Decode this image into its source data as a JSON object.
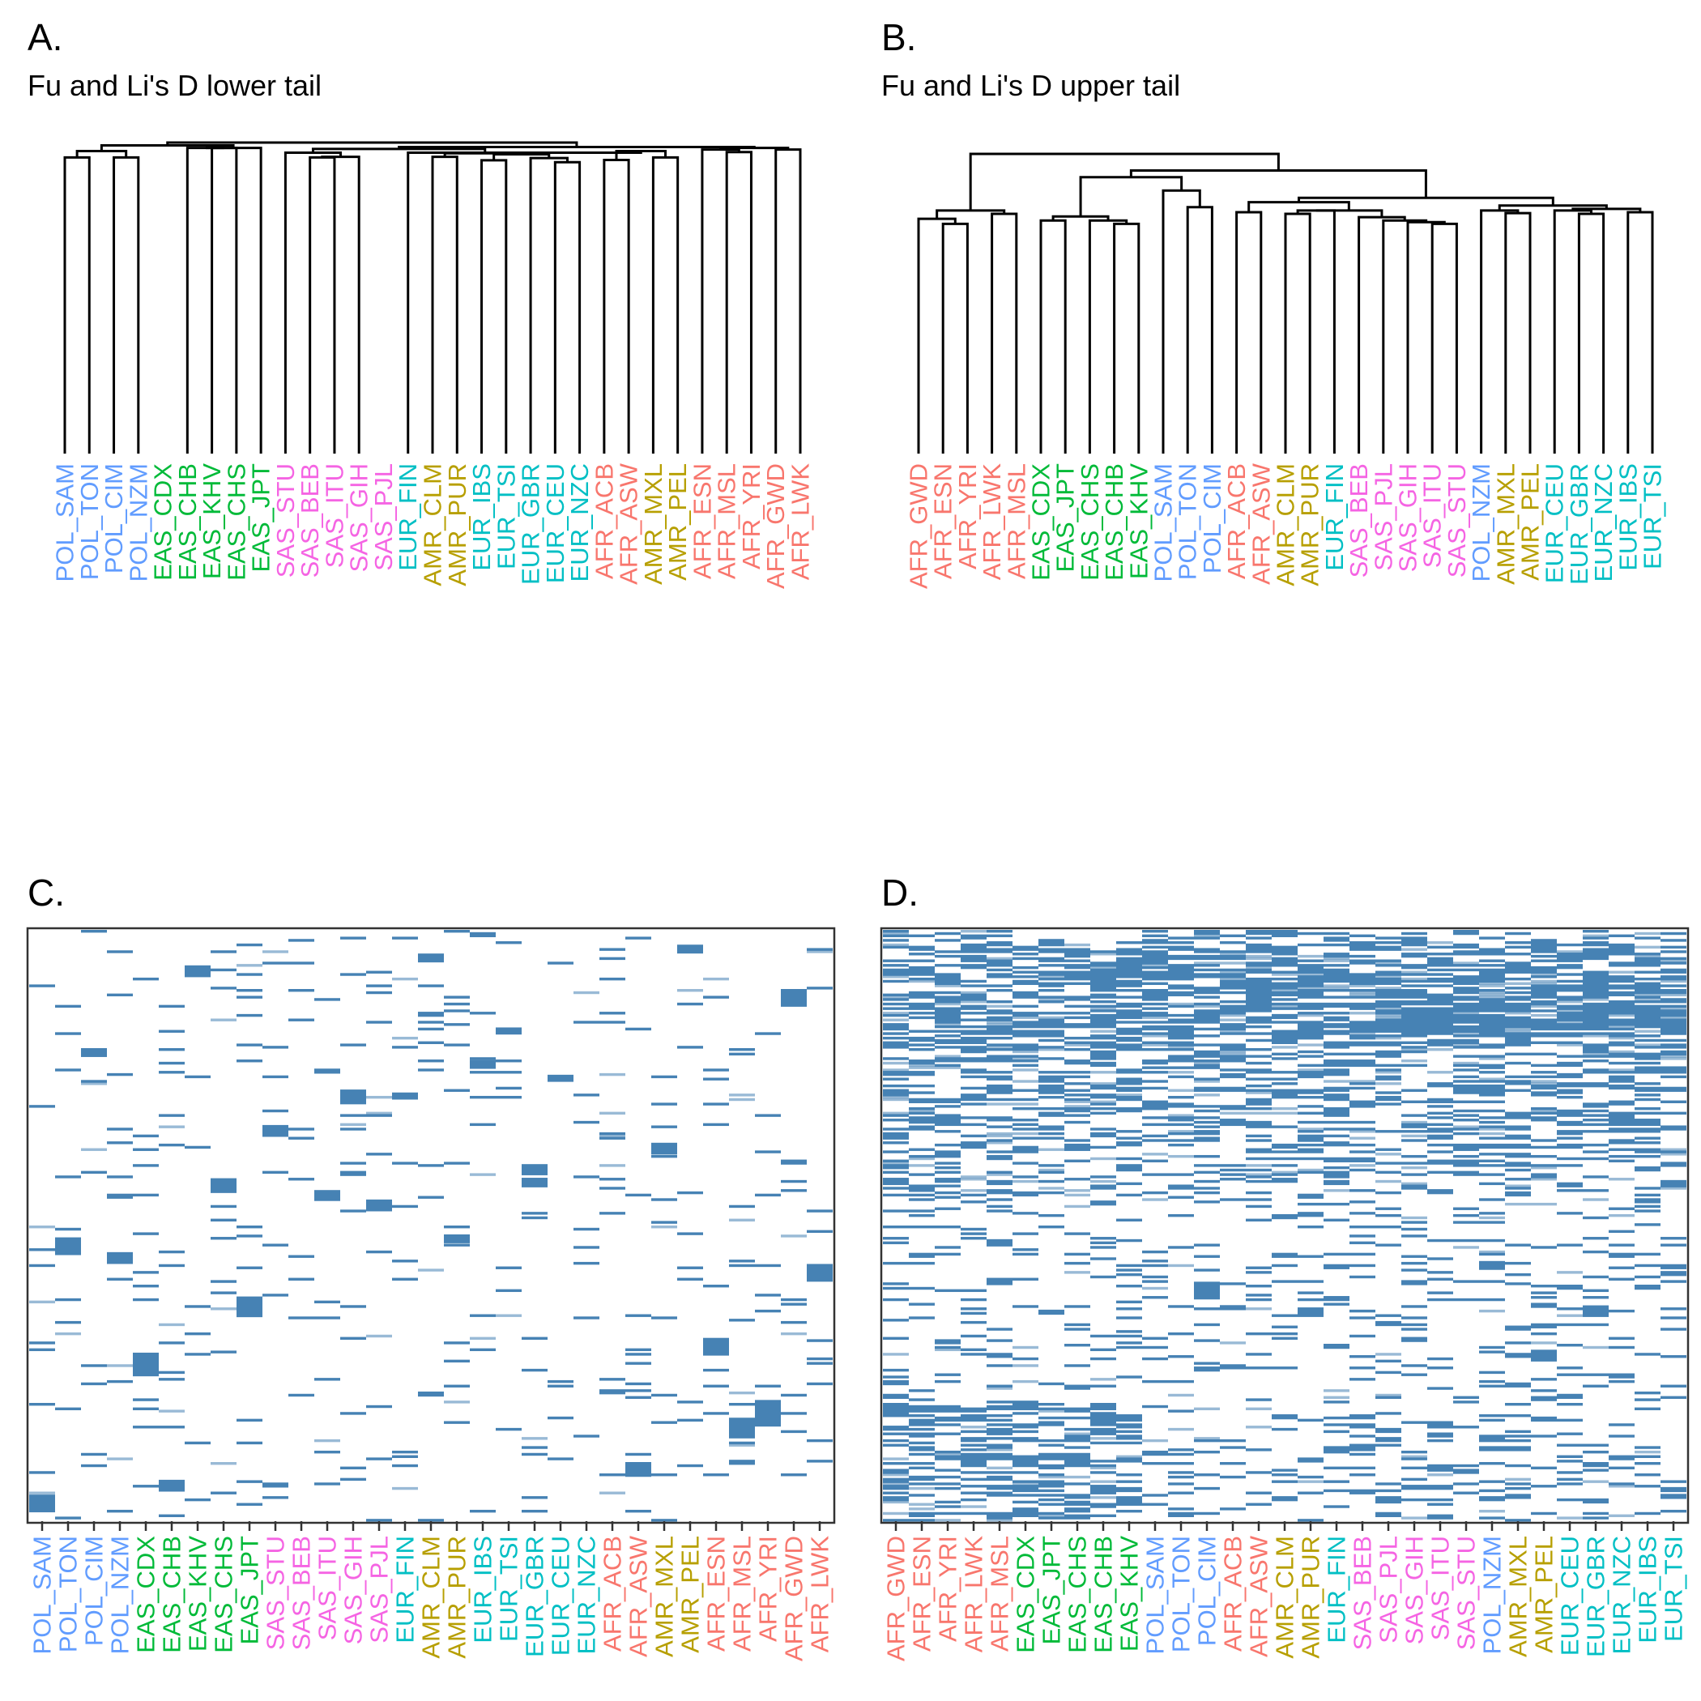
{
  "chart_data": [
    {
      "panel": "A.",
      "type": "dendrogram",
      "title": "Fu and Li's D lower tail",
      "leaves": [
        "POL_SAM",
        "POL_TON",
        "POL_CIM",
        "POL_NZM",
        "EAS_CDX",
        "EAS_CHB",
        "EAS_KHV",
        "EAS_CHS",
        "EAS_JPT",
        "SAS_STU",
        "SAS_BEB",
        "SAS_ITU",
        "SAS_GIH",
        "SAS_PJL",
        "EUR_FIN",
        "AMR_CLM",
        "AMR_PUR",
        "EUR_IBS",
        "EUR_TSI",
        "EUR_GBR",
        "EUR_CEU",
        "EUR_NZC",
        "AFR_ACB",
        "AFR_ASW",
        "AMR_MXL",
        "AMR_PEL",
        "AFR_ESN",
        "AFR_MSL",
        "AFR_YRI",
        "AFR_GWD",
        "AFR_LWK"
      ],
      "merges": [
        {
          "l": 0,
          "r": 1,
          "h": 0.935
        },
        {
          "l": 2,
          "r": 3,
          "h": 0.935
        },
        {
          "l": -1,
          "r": -2,
          "h": 0.955
        },
        {
          "l": 6,
          "r": 7,
          "h": 0.965
        },
        {
          "l": 5,
          "r": -4,
          "h": 0.965
        },
        {
          "l": -5,
          "r": 8,
          "h": 0.965
        },
        {
          "l": -3,
          "r": -6,
          "h": 0.973
        },
        {
          "l": 10,
          "r": 11,
          "h": 0.935
        },
        {
          "l": -8,
          "r": 12,
          "h": 0.937
        },
        {
          "l": 9,
          "r": -9,
          "h": 0.95
        },
        {
          "l": 15,
          "r": 16,
          "h": 0.937
        },
        {
          "l": 17,
          "r": 18,
          "h": 0.926
        },
        {
          "l": 20,
          "r": 21,
          "h": 0.92
        },
        {
          "l": 19,
          "r": -13,
          "h": 0.933
        },
        {
          "l": -12,
          "r": -14,
          "h": 0.945
        },
        {
          "l": -11,
          "r": -15,
          "h": 0.948
        },
        {
          "l": 22,
          "r": 23,
          "h": 0.927
        },
        {
          "l": 24,
          "r": 25,
          "h": 0.935
        },
        {
          "l": -17,
          "r": -18,
          "h": 0.955
        },
        {
          "l": -16,
          "r": -19,
          "h": 0.95
        },
        {
          "l": 14,
          "r": -20,
          "h": 0.95
        },
        {
          "l": -10,
          "r": -21,
          "h": 0.962
        },
        {
          "l": 27,
          "r": 28,
          "h": 0.952
        },
        {
          "l": 26,
          "r": -23,
          "h": 0.96
        },
        {
          "l": 29,
          "r": 30,
          "h": 0.96
        },
        {
          "l": -24,
          "r": -25,
          "h": 0.965
        },
        {
          "l": -22,
          "r": -26,
          "h": 0.968
        },
        {
          "l": -7,
          "r": -27,
          "h": 0.982
        },
        {
          "l": -28,
          "r": -28,
          "h": 0.982
        }
      ],
      "colors": {
        "POL": "#619CFF",
        "EAS": "#00BA38",
        "SAS": "#F564E3",
        "EUR": "#00BFC4",
        "AMR": "#B79F00",
        "AFR": "#F8766D"
      }
    },
    {
      "panel": "B.",
      "type": "dendrogram",
      "title": "Fu and Li's D upper tail",
      "leaves": [
        "AFR_GWD",
        "AFR_ESN",
        "AFR_YRI",
        "AFR_LWK",
        "AFR_MSL",
        "EAS_CDX",
        "EAS_JPT",
        "EAS_CHS",
        "EAS_CHB",
        "EAS_KHV",
        "POL_SAM",
        "POL_TON",
        "POL_CIM",
        "AFR_ACB",
        "AFR_ASW",
        "AMR_CLM",
        "AMR_PUR",
        "EUR_FIN",
        "SAS_BEB",
        "SAS_PJL",
        "SAS_GIH",
        "SAS_ITU",
        "SAS_STU",
        "POL_NZM",
        "AMR_MXL",
        "AMR_PEL",
        "EUR_CEU",
        "EUR_GBR",
        "EUR_NZC",
        "EUR_IBS",
        "EUR_TSI"
      ],
      "merges": [
        {
          "l": 1,
          "r": 2,
          "h": 0.69
        },
        {
          "l": 0,
          "r": -1,
          "h": 0.705
        },
        {
          "l": 3,
          "r": 4,
          "h": 0.72
        },
        {
          "l": -2,
          "r": -3,
          "h": 0.73
        },
        {
          "l": 8,
          "r": 9,
          "h": 0.69
        },
        {
          "l": 7,
          "r": -5,
          "h": 0.7
        },
        {
          "l": 5,
          "r": 6,
          "h": 0.7
        },
        {
          "l": -7,
          "r": -6,
          "h": 0.712
        },
        {
          "l": 11,
          "r": 12,
          "h": 0.74
        },
        {
          "l": 10,
          "r": -9,
          "h": 0.79
        },
        {
          "l": -8,
          "r": -10,
          "h": 0.83
        },
        {
          "l": 13,
          "r": 14,
          "h": 0.725
        },
        {
          "l": 15,
          "r": 16,
          "h": 0.72
        },
        {
          "l": -13,
          "r": 17,
          "h": 0.73
        },
        {
          "l": 21,
          "r": 22,
          "h": 0.69
        },
        {
          "l": 20,
          "r": -15,
          "h": 0.695
        },
        {
          "l": 19,
          "r": -16,
          "h": 0.7
        },
        {
          "l": 18,
          "r": -17,
          "h": 0.71
        },
        {
          "l": -14,
          "r": -18,
          "h": 0.73
        },
        {
          "l": -12,
          "r": -19,
          "h": 0.755
        },
        {
          "l": 24,
          "r": 25,
          "h": 0.722
        },
        {
          "l": 23,
          "r": -21,
          "h": 0.73
        },
        {
          "l": 27,
          "r": 28,
          "h": 0.72
        },
        {
          "l": 26,
          "r": -23,
          "h": 0.73
        },
        {
          "l": 29,
          "r": 30,
          "h": 0.725
        },
        {
          "l": -24,
          "r": -25,
          "h": 0.735
        },
        {
          "l": -22,
          "r": -26,
          "h": 0.745
        },
        {
          "l": -20,
          "r": -27,
          "h": 0.768
        },
        {
          "l": -11,
          "r": -28,
          "h": 0.85
        },
        {
          "l": -4,
          "r": -29,
          "h": 0.9
        }
      ],
      "colors": {
        "POL": "#619CFF",
        "EAS": "#00BA38",
        "SAS": "#F564E3",
        "EUR": "#00BFC4",
        "AMR": "#B79F00",
        "AFR": "#F8766D"
      }
    },
    {
      "panel": "C.",
      "type": "heatmap",
      "columns": [
        "POL_SAM",
        "POL_TON",
        "POL_CIM",
        "POL_NZM",
        "EAS_CDX",
        "EAS_CHB",
        "EAS_KHV",
        "EAS_CHS",
        "EAS_JPT",
        "SAS_STU",
        "SAS_BEB",
        "SAS_ITU",
        "SAS_GIH",
        "SAS_PJL",
        "EUR_FIN",
        "AMR_CLM",
        "AMR_PUR",
        "EUR_IBS",
        "EUR_TSI",
        "EUR_GBR",
        "EUR_CEU",
        "EUR_NZC",
        "AFR_ACB",
        "AFR_ASW",
        "AMR_MXL",
        "AMR_PEL",
        "AFR_ESN",
        "AFR_MSL",
        "AFR_YRI",
        "AFR_GWD",
        "AFR_LWK"
      ],
      "fill_color": "#4682B4",
      "density_profile": "sparse",
      "blocks": [
        {
          "col": 0,
          "y": 0.955,
          "h": 0.03
        },
        {
          "col": 1,
          "y": 0.52,
          "h": 0.03
        },
        {
          "col": 2,
          "y": 0.2,
          "h": 0.015
        },
        {
          "col": 3,
          "y": 0.545,
          "h": 0.02
        },
        {
          "col": 4,
          "y": 0.715,
          "h": 0.04
        },
        {
          "col": 5,
          "y": 0.93,
          "h": 0.02
        },
        {
          "col": 6,
          "y": 0.06,
          "h": 0.02
        },
        {
          "col": 7,
          "y": 0.42,
          "h": 0.025
        },
        {
          "col": 8,
          "y": 0.62,
          "h": 0.035
        },
        {
          "col": 9,
          "y": 0.33,
          "h": 0.02
        },
        {
          "col": 11,
          "y": 0.44,
          "h": 0.015
        },
        {
          "col": 12,
          "y": 0.27,
          "h": 0.025
        },
        {
          "col": 13,
          "y": 0.456,
          "h": 0.02
        },
        {
          "col": 14,
          "y": 0.275,
          "h": 0.012
        },
        {
          "col": 15,
          "y": 0.04,
          "h": 0.015
        },
        {
          "col": 16,
          "y": 0.515,
          "h": 0.015
        },
        {
          "col": 17,
          "y": 0.22,
          "h": 0.015
        },
        {
          "col": 18,
          "y": 0.165,
          "h": 0.012
        },
        {
          "col": 19,
          "y": 0.4,
          "h": 0.015
        },
        {
          "col": 20,
          "y": 0.245,
          "h": 0.012
        },
        {
          "col": 23,
          "y": 0.9,
          "h": 0.025
        },
        {
          "col": 24,
          "y": 0.36,
          "h": 0.02
        },
        {
          "col": 25,
          "y": 0.025,
          "h": 0.015
        },
        {
          "col": 26,
          "y": 0.69,
          "h": 0.03
        },
        {
          "col": 27,
          "y": 0.825,
          "h": 0.035
        },
        {
          "col": 28,
          "y": 0.795,
          "h": 0.045
        },
        {
          "col": 29,
          "y": 0.1,
          "h": 0.03
        },
        {
          "col": 30,
          "y": 0.565,
          "h": 0.03
        }
      ]
    },
    {
      "panel": "D.",
      "type": "heatmap",
      "columns": [
        "AFR_GWD",
        "AFR_ESN",
        "AFR_YRI",
        "AFR_LWK",
        "AFR_MSL",
        "EAS_CDX",
        "EAS_JPT",
        "EAS_CHS",
        "EAS_CHB",
        "EAS_KHV",
        "POL_SAM",
        "POL_TON",
        "POL_CIM",
        "AFR_ACB",
        "AFR_ASW",
        "AMR_CLM",
        "AMR_PUR",
        "EUR_FIN",
        "SAS_BEB",
        "SAS_PJL",
        "SAS_GIH",
        "SAS_ITU",
        "SAS_STU",
        "POL_NZM",
        "AMR_MXL",
        "AMR_PEL",
        "EUR_CEU",
        "EUR_GBR",
        "EUR_NZC",
        "EUR_IBS",
        "EUR_TSI"
      ],
      "fill_color": "#4682B4",
      "density_profile": "dense-top-sparse-bottom",
      "blocks": [
        {
          "col": 12,
          "y": 0.595,
          "h": 0.03
        },
        {
          "col": 23,
          "y": 0.56,
          "h": 0.015
        },
        {
          "col": 25,
          "y": 0.71,
          "h": 0.02
        },
        {
          "col": 27,
          "y": 0.635,
          "h": 0.015
        }
      ]
    }
  ]
}
